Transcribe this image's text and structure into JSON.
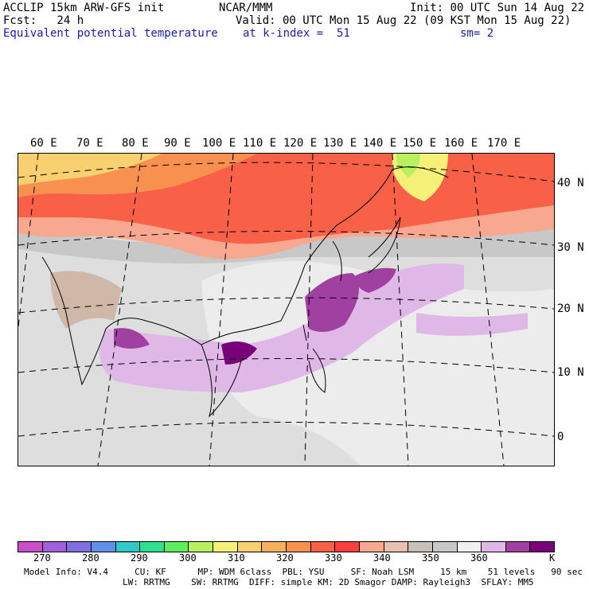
{
  "header": {
    "line1_left": "ACCLIP 15km ARW-GFS init",
    "line1_center": "NCAR/MMM",
    "line1_right": "Init: 00 UTC Sun 14 Aug 22",
    "line2_left": "Fcst:   24 h",
    "line2_right": "Valid: 00 UTC Mon 15 Aug 22 (09 KST Mon 15 Aug 22)",
    "line3_left": "Equivalent potential temperature",
    "line3_center": "at k-index =  51",
    "line3_right": "sm= 2"
  },
  "map": {
    "longitude_labels": [
      "60 E",
      "70 E",
      "80 E",
      "90 E",
      "100 E",
      "110 E",
      "120 E",
      "130 E",
      "140 E",
      "150 E",
      "160 E",
      "170 E"
    ],
    "latitude_labels": [
      "40 N",
      "30 N",
      "20 N",
      "10 N",
      "0"
    ]
  },
  "colorbar": {
    "colors": [
      "#c84fc8",
      "#a060d8",
      "#7f6fe0",
      "#6090e8",
      "#30c8c8",
      "#30e090",
      "#60ee60",
      "#b8f060",
      "#f5f078",
      "#f8d070",
      "#f8b060",
      "#f89050",
      "#f86048",
      "#f84040",
      "#f8a890",
      "#e8c0b0",
      "#c8c0b8",
      "#c8c8c8",
      "#f0f0f0",
      "#e0b8e8",
      "#a040a0",
      "#780078"
    ],
    "labels": [
      "270",
      "280",
      "290",
      "300",
      "310",
      "320",
      "330",
      "340",
      "350",
      "360",
      "K"
    ]
  },
  "footer": {
    "line1": "Model Info: V4.4     CU: KF      MP: WDM 6class  PBL: YSU     SF: Noah LSM     15 km    51 levels   90 sec",
    "line2": "LW: RRTMG    SW: RRTMG  DIFF: simple KM: 2D Smagor DAMP: Rayleigh3  SFLAY: MM5"
  }
}
